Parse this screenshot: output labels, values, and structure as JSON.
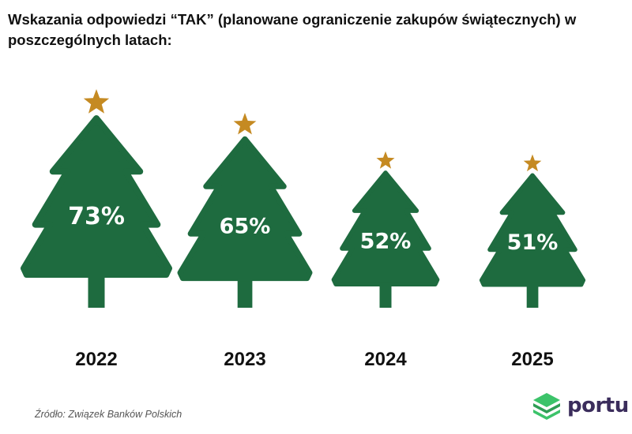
{
  "title": "Wskazania odpowiedzi “TAK” (planowane ograniczenie zakupów świątecznych) w poszczególnych latach:",
  "source": "Źródło: Związek Banków Polskich",
  "logo": {
    "text": "portu",
    "icon": "stacked-layers-icon"
  },
  "colors": {
    "tree": "#1e6b3f",
    "star": "#c58a22",
    "label": "#ffffff",
    "logo_green": "#3cc36a",
    "logo_text": "#3b2d5c"
  },
  "chart_data": {
    "type": "bar",
    "categories": [
      "2022",
      "2023",
      "2024",
      "2025"
    ],
    "values": [
      73,
      65,
      52,
      51
    ],
    "value_labels": [
      "73%",
      "65%",
      "52%",
      "51%"
    ],
    "unit": "%"
  }
}
